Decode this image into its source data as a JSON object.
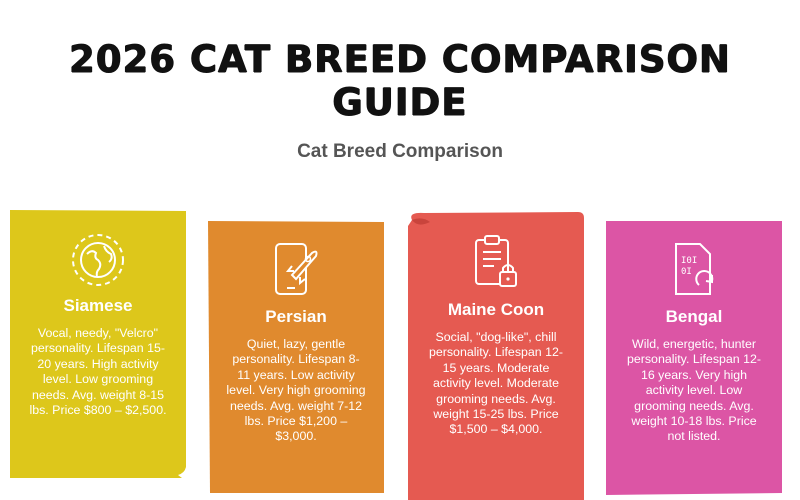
{
  "title": "2026 CAT BREED COMPARISON GUIDE",
  "subtitle": "Cat Breed Comparison",
  "breeds": [
    {
      "name": "Siamese",
      "icon": "globe-icon",
      "color": "#DDC71B",
      "description": "Vocal, needy, \"Velcro\" personality. Lifespan 15-20 years. High activity level. Low grooming needs. Avg. weight 8-15 lbs. Price $800 – $2,500."
    },
    {
      "name": "Persian",
      "icon": "phone-rocket-icon",
      "color": "#E08A2E",
      "description": "Quiet, lazy, gentle personality. Lifespan 8-11 years. Low activity level. Very high grooming needs. Avg. weight 7-12 lbs. Price $1,200 – $3,000."
    },
    {
      "name": "Maine Coon",
      "icon": "clipboard-lock-icon",
      "color": "#E55A51",
      "description": "Social, \"dog-like\", chill personality. Lifespan 12-15 years. Moderate activity level. Moderate grooming needs. Avg. weight 15-25 lbs. Price $1,500 – $4,000."
    },
    {
      "name": "Bengal",
      "icon": "sim-card-binary-icon",
      "color": "#DC55A5",
      "description": "Wild, energetic, hunter personality. Lifespan 12-16 years. Very high activity level. Low grooming needs. Avg. weight 10-18 lbs. Price not listed."
    }
  ]
}
